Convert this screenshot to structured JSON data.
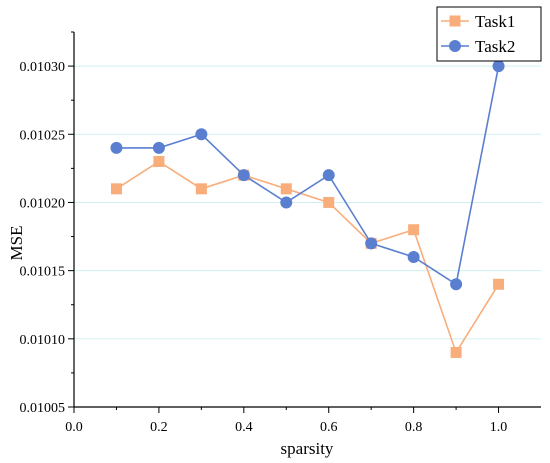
{
  "chart_data": {
    "type": "line",
    "xlabel": "sparsity",
    "ylabel": "MSE",
    "xlim": [
      0.0,
      1.1
    ],
    "ylim": [
      0.01005,
      0.010325
    ],
    "x_ticks": [
      0.0,
      0.2,
      0.4,
      0.6,
      0.8,
      1.0
    ],
    "x_tick_labels": [
      "0.0",
      "0.2",
      "0.4",
      "0.6",
      "0.8",
      "1.0"
    ],
    "y_ticks": [
      0.01005,
      0.0101,
      0.01015,
      0.0102,
      0.01025,
      0.0103
    ],
    "y_tick_labels": [
      "0.01005",
      "0.01010",
      "0.01015",
      "0.01020",
      "0.01025",
      "0.01030"
    ],
    "grid": "horizontal",
    "legend_position": "top-right",
    "x": [
      0.1,
      0.2,
      0.3,
      0.4,
      0.5,
      0.6,
      0.7,
      0.8,
      0.9,
      1.0
    ],
    "series": [
      {
        "name": "Task1",
        "marker": "square",
        "color": "#F8AD7A",
        "values": [
          0.01021,
          0.01023,
          0.01021,
          0.01022,
          0.01021,
          0.0102,
          0.01017,
          0.01018,
          0.01009,
          0.01014
        ]
      },
      {
        "name": "Task2",
        "marker": "circle",
        "color": "#5B7FD0",
        "values": [
          0.01024,
          0.01024,
          0.01025,
          0.01022,
          0.0102,
          0.01022,
          0.01017,
          0.01016,
          0.01014,
          0.0103
        ]
      }
    ]
  }
}
